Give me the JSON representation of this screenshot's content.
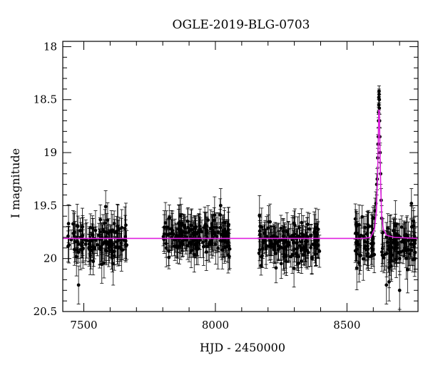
{
  "chart_data": {
    "type": "scatter",
    "title": "OGLE-2019-BLG-0703",
    "xlabel": "HJD - 2450000",
    "ylabel": "I magnitude",
    "xlim": [
      7420,
      8770
    ],
    "ylim": [
      20.5,
      17.95
    ],
    "y_inverted": true,
    "x_ticks": [
      7500,
      8000,
      8500
    ],
    "y_ticks": [
      18,
      18.5,
      19,
      19.5,
      20,
      20.5
    ],
    "x_tick_labels": [
      "7500",
      "8000",
      "8500"
    ],
    "y_tick_labels": [
      "18",
      "18.5",
      "19",
      "19.5",
      "20",
      "20.5"
    ],
    "grid": false,
    "colors": {
      "data": "#000000",
      "model": "#e020e0"
    },
    "model": {
      "x": [
        7420,
        8560,
        8590,
        8605,
        8612,
        8616,
        8619,
        8621,
        8623,
        8625,
        8628,
        8632,
        8638,
        8650,
        8680,
        8770
      ],
      "y": [
        19.81,
        19.81,
        19.8,
        19.72,
        19.55,
        19.25,
        18.9,
        18.6,
        18.6,
        18.9,
        19.3,
        19.6,
        19.72,
        19.78,
        19.8,
        19.81
      ]
    },
    "series": [
      {
        "type": "scatter_errorbars",
        "seasons": [
          {
            "x_range": [
              7440,
              7665
            ],
            "mean_mag": 19.85,
            "spread": 0.17,
            "mean_err": 0.15,
            "count": 130
          },
          {
            "x_range": [
              7800,
              8055
            ],
            "mean_mag": 19.78,
            "spread": 0.15,
            "mean_err": 0.14,
            "count": 170
          },
          {
            "x_range": [
              8165,
              8400
            ],
            "mean_mag": 19.85,
            "spread": 0.16,
            "mean_err": 0.14,
            "count": 150
          },
          {
            "x_range": [
              8530,
              8605
            ],
            "mean_mag": 19.85,
            "spread": 0.18,
            "mean_err": 0.15,
            "count": 55
          },
          {
            "x_range": [
              8632,
              8765
            ],
            "mean_mag": 19.87,
            "spread": 0.18,
            "mean_err": 0.16,
            "count": 85
          }
        ],
        "peak_points": {
          "x": [
            8603,
            8607,
            8610,
            8613,
            8615,
            8617,
            8618,
            8619,
            8620,
            8620,
            8621,
            8621,
            8622,
            8622,
            8623,
            8623,
            8624,
            8625,
            8626,
            8628,
            8630,
            8632
          ],
          "y": [
            19.62,
            19.55,
            19.48,
            19.3,
            19.25,
            19.05,
            18.92,
            18.85,
            18.7,
            18.62,
            18.55,
            18.48,
            18.45,
            18.42,
            18.5,
            18.58,
            18.7,
            18.85,
            19.0,
            19.2,
            19.45,
            19.62
          ],
          "err": [
            0.12,
            0.12,
            0.11,
            0.1,
            0.1,
            0.09,
            0.09,
            0.08,
            0.06,
            0.05,
            0.05,
            0.05,
            0.05,
            0.05,
            0.05,
            0.05,
            0.06,
            0.08,
            0.09,
            0.1,
            0.11,
            0.12
          ]
        },
        "notable_points": {
          "x": [
            7583,
            7480,
            8020,
            8745,
            8700,
            8660,
            8650
          ],
          "y": [
            19.51,
            20.25,
            19.5,
            19.48,
            20.3,
            20.22,
            20.25
          ],
          "err": [
            0.15,
            0.18,
            0.16,
            0.14,
            0.18,
            0.18,
            0.18
          ]
        }
      }
    ]
  }
}
